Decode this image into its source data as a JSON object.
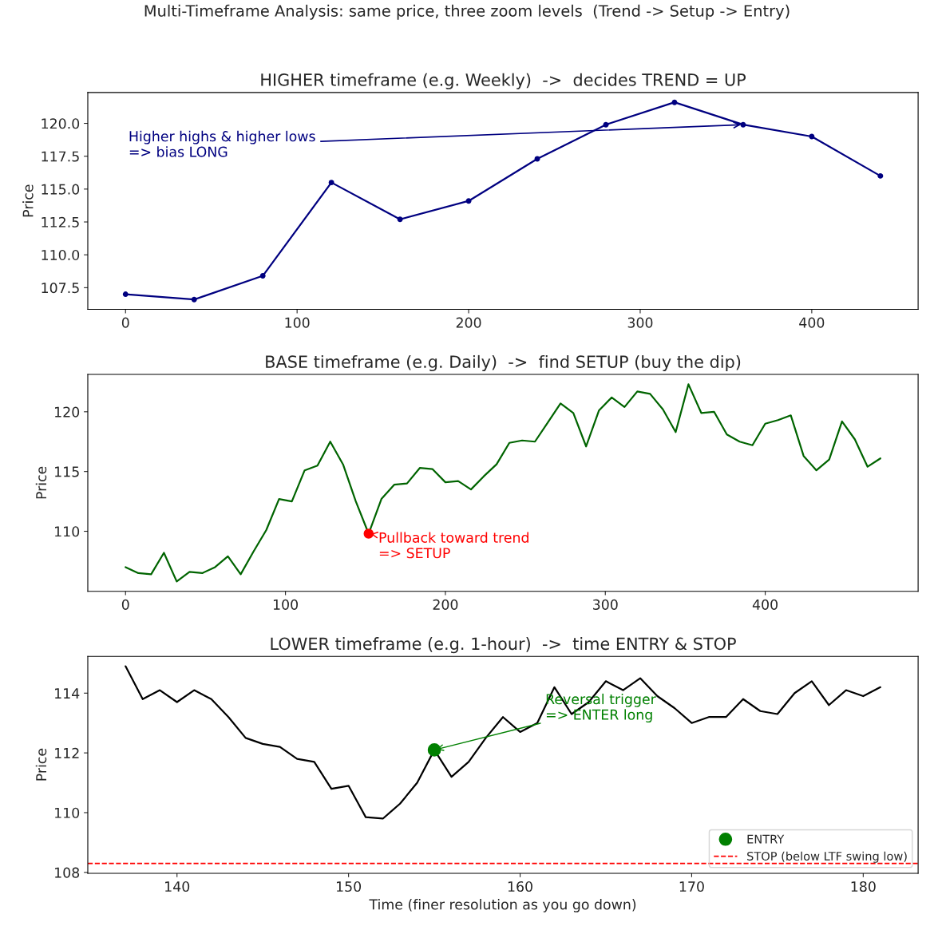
{
  "chart_data": [
    {
      "type": "line",
      "title": "HIGHER timeframe (e.g. Weekly)  ->  decides TREND = UP",
      "ylabel": "Price",
      "annotations": [
        "Multi-Timeframe Analysis: same price, three zoom levels  (Trend -> Setup -> Entry)",
        {
          "text": "Higher highs & higher lows\n=> bias LONG",
          "x": 360,
          "y": 119.9
        }
      ],
      "x": [
        0,
        40,
        80,
        120,
        160,
        200,
        240,
        280,
        320,
        360,
        400,
        440
      ],
      "series": [
        {
          "color": "#000080",
          "marker": "circle",
          "values": [
            107.0,
            106.6,
            108.4,
            115.5,
            112.7,
            114.1,
            117.3,
            119.9,
            121.6,
            119.9,
            119.0,
            116.0
          ]
        }
      ],
      "xlim": [
        -22,
        462
      ],
      "ylim": [
        105.85,
        122.35
      ],
      "xticks": [
        0,
        100,
        200,
        300,
        400
      ],
      "yticks": [
        {
          "value": 107.5,
          "label": "107.5"
        },
        {
          "value": 110,
          "label": "110.0"
        },
        {
          "value": 112.5,
          "label": "112.5"
        },
        {
          "value": 115,
          "label": "115.0"
        },
        {
          "value": 117.5,
          "label": "117.5"
        },
        {
          "value": 120,
          "label": "120.0"
        }
      ],
      "grid": false,
      "legend": false
    },
    {
      "type": "line",
      "title": "BASE timeframe (e.g. Daily)  ->  find SETUP (buy the dip)",
      "ylabel": "Price",
      "annotations": [
        {
          "text": "Pullback toward trend\n=> SETUP",
          "x": 152,
          "y": 109.8
        }
      ],
      "x": [
        0,
        8,
        16,
        24,
        32,
        40,
        48,
        56,
        64,
        72,
        80,
        88,
        96,
        104,
        112,
        120,
        128,
        136,
        144,
        152,
        160,
        168,
        176,
        184,
        192,
        200,
        208,
        216,
        224,
        232,
        240,
        248,
        256,
        264,
        272,
        280,
        288,
        296,
        304,
        312,
        320,
        328,
        336,
        344,
        352,
        360,
        368,
        376,
        384,
        392,
        400,
        408,
        416,
        424,
        432,
        440,
        448,
        456,
        464,
        472
      ],
      "series": [
        {
          "color": "#006400",
          "values": [
            107.0,
            106.5,
            106.4,
            108.2,
            105.8,
            106.6,
            106.5,
            107.0,
            107.9,
            106.4,
            108.3,
            110.1,
            112.7,
            112.5,
            115.1,
            115.5,
            117.5,
            115.6,
            112.5,
            109.8,
            112.7,
            113.9,
            114.0,
            115.3,
            115.2,
            114.1,
            114.2,
            113.5,
            114.6,
            115.6,
            117.4,
            117.6,
            117.5,
            119.1,
            120.7,
            119.9,
            117.1,
            120.1,
            121.2,
            120.4,
            121.7,
            121.5,
            120.2,
            118.3,
            122.3,
            119.9,
            120.0,
            118.1,
            117.5,
            117.2,
            119.0,
            119.3,
            119.7,
            116.3,
            115.1,
            116.0,
            119.2,
            117.7,
            115.4,
            116.1
          ]
        },
        {
          "type": "scatter",
          "color": "#ff0000",
          "x": [
            152
          ],
          "values": [
            109.8
          ]
        }
      ],
      "xlim": [
        -23.6,
        495.6
      ],
      "ylim": [
        104.975,
        123.125
      ],
      "xticks": [
        0,
        100,
        200,
        300,
        400
      ],
      "yticks": [
        110,
        115,
        120
      ],
      "grid": false,
      "legend": false
    },
    {
      "type": "line",
      "title": "LOWER timeframe (e.g. 1-hour)  ->  time ENTRY & STOP",
      "xlabel": "Time (finer resolution as you go down)",
      "ylabel": "Price",
      "annotations": [
        {
          "text": "Reversal trigger\n=> ENTER long",
          "x": 155,
          "y": 112.1
        }
      ],
      "x": [
        137,
        138,
        139,
        140,
        141,
        142,
        143,
        144,
        145,
        146,
        147,
        148,
        149,
        150,
        151,
        152,
        153,
        154,
        155,
        156,
        157,
        158,
        159,
        160,
        161,
        162,
        163,
        164,
        165,
        166,
        167,
        168,
        169,
        170,
        171,
        172,
        173,
        174,
        175,
        176,
        177,
        178,
        179,
        180,
        181
      ],
      "series": [
        {
          "color": "#000000",
          "values": [
            114.9,
            113.8,
            114.1,
            113.7,
            114.1,
            113.8,
            113.2,
            112.5,
            112.3,
            112.2,
            111.8,
            111.7,
            110.8,
            110.9,
            109.85,
            109.8,
            110.3,
            111.0,
            112.1,
            111.2,
            111.7,
            112.5,
            113.2,
            112.7,
            113.0,
            114.2,
            113.3,
            113.7,
            114.4,
            114.1,
            114.5,
            113.9,
            113.5,
            113.0,
            113.2,
            113.2,
            113.8,
            113.4,
            113.3,
            114.0,
            114.4,
            113.6,
            114.1,
            113.9,
            114.2
          ]
        },
        {
          "type": "scatter",
          "name": "ENTRY",
          "color": "#008000",
          "x": [
            155
          ],
          "values": [
            112.1
          ]
        }
      ],
      "ref_lines": [
        {
          "axis": "y",
          "value": 108.3,
          "label": "STOP (below LTF swing low)",
          "color": "#ff0000",
          "line_style": "dashed"
        }
      ],
      "xlim": [
        134.8,
        183.2
      ],
      "ylim": [
        107.97,
        115.23
      ],
      "xticks": [
        140,
        150,
        160,
        170,
        180
      ],
      "yticks": [
        108,
        110,
        112,
        114
      ],
      "grid": false,
      "legend": "lower right"
    }
  ]
}
